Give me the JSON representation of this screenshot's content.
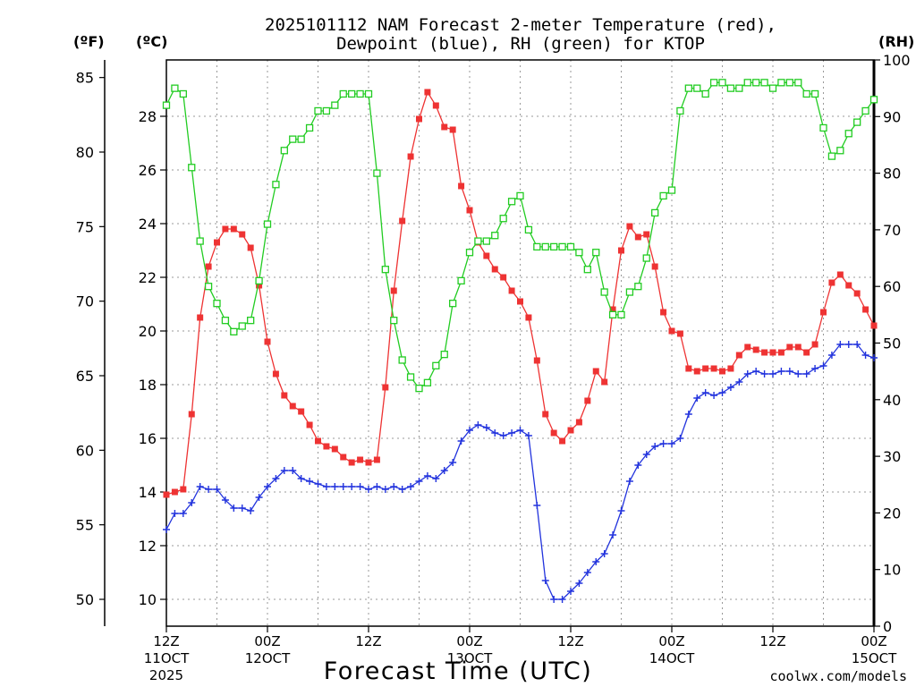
{
  "title_line1": "2025101112 NAM Forecast 2-meter Temperature (red),",
  "title_line2": "Dewpoint (blue), RH (green) for KTOP",
  "unit_f": "(ºF)",
  "unit_c": "(ºC)",
  "unit_rh": "(RH)",
  "xlabel": "Forecast Time (UTC)",
  "credit": "coolwx.com/models",
  "colors": {
    "temp": "#ee3333",
    "dewpoint": "#2233dd",
    "rh": "#22cc22",
    "grid": "#999999",
    "credit": "#ee3333"
  },
  "chart_data": {
    "type": "line",
    "x_hours": [
      0,
      1,
      2,
      3,
      4,
      5,
      6,
      7,
      8,
      9,
      10,
      11,
      12,
      13,
      14,
      15,
      16,
      17,
      18,
      19,
      20,
      21,
      22,
      23,
      24,
      25,
      26,
      27,
      28,
      29,
      30,
      31,
      32,
      33,
      34,
      35,
      36,
      37,
      38,
      39,
      40,
      41,
      42,
      43,
      44,
      45,
      46,
      47,
      48,
      49,
      50,
      51,
      52,
      53,
      54,
      55,
      56,
      57,
      58,
      59,
      60,
      61,
      62,
      63,
      64,
      65,
      66,
      67,
      68,
      69,
      70,
      71,
      72,
      73,
      74,
      75,
      76,
      77,
      78,
      79,
      80,
      81,
      82,
      83,
      84
    ],
    "x_ticks": [
      {
        "hour": 0,
        "label1": "12Z",
        "label2": "11OCT",
        "label3": "2025"
      },
      {
        "hour": 12,
        "label1": "00Z",
        "label2": "12OCT",
        "label3": ""
      },
      {
        "hour": 24,
        "label1": "12Z",
        "label2": "",
        "label3": ""
      },
      {
        "hour": 36,
        "label1": "00Z",
        "label2": "13OCT",
        "label3": ""
      },
      {
        "hour": 48,
        "label1": "12Z",
        "label2": "",
        "label3": ""
      },
      {
        "hour": 60,
        "label1": "00Z",
        "label2": "14OCT",
        "label3": ""
      },
      {
        "hour": 72,
        "label1": "12Z",
        "label2": "",
        "label3": ""
      },
      {
        "hour": 84,
        "label1": "00Z",
        "label2": "15OCT",
        "label3": ""
      }
    ],
    "xlim": [
      0,
      84
    ],
    "ylim_c": [
      9,
      30.1
    ],
    "yticks_c": [
      "10",
      "12",
      "14",
      "16",
      "18",
      "20",
      "22",
      "24",
      "26",
      "28"
    ],
    "yticks_f": [
      "50",
      "55",
      "60",
      "65",
      "70",
      "75",
      "80",
      "85"
    ],
    "ylim_rh": [
      0,
      100
    ],
    "yticks_rh": [
      "0",
      "10",
      "20",
      "30",
      "40",
      "50",
      "60",
      "70",
      "80",
      "90",
      "100"
    ],
    "grid": true,
    "series": [
      {
        "name": "Temperature",
        "unit": "C",
        "marker": "filled-square",
        "values": [
          13.9,
          14.0,
          14.1,
          16.9,
          20.5,
          22.4,
          23.3,
          23.8,
          23.8,
          23.6,
          23.1,
          21.7,
          19.6,
          18.4,
          17.6,
          17.2,
          17.0,
          16.5,
          15.9,
          15.7,
          15.6,
          15.3,
          15.1,
          15.2,
          15.1,
          15.2,
          17.9,
          21.5,
          24.1,
          26.5,
          27.9,
          28.9,
          28.4,
          27.6,
          27.5,
          25.4,
          24.5,
          23.3,
          22.8,
          22.3,
          22.0,
          21.5,
          21.1,
          20.5,
          18.9,
          16.9,
          16.2,
          15.9,
          16.3,
          16.6,
          17.4,
          18.5,
          18.1,
          20.8,
          23.0,
          23.9,
          23.5,
          23.6,
          22.4,
          20.7,
          20.0,
          19.9,
          18.6,
          18.5,
          18.6,
          18.6,
          18.5,
          18.6,
          19.1,
          19.4,
          19.3,
          19.2,
          19.2,
          19.2,
          19.4,
          19.4,
          19.2,
          19.5,
          20.7,
          21.8,
          22.1,
          21.7,
          21.4,
          20.8,
          20.2
        ]
      },
      {
        "name": "Dewpoint",
        "unit": "C",
        "marker": "plus",
        "values": [
          12.6,
          13.2,
          13.2,
          13.6,
          14.2,
          14.1,
          14.1,
          13.7,
          13.4,
          13.4,
          13.3,
          13.8,
          14.2,
          14.5,
          14.8,
          14.8,
          14.5,
          14.4,
          14.3,
          14.2,
          14.2,
          14.2,
          14.2,
          14.2,
          14.1,
          14.2,
          14.1,
          14.2,
          14.1,
          14.2,
          14.4,
          14.6,
          14.5,
          14.8,
          15.1,
          15.9,
          16.3,
          16.5,
          16.4,
          16.2,
          16.1,
          16.2,
          16.3,
          16.1,
          13.5,
          10.7,
          10.0,
          10.0,
          10.3,
          10.6,
          11.0,
          11.4,
          11.7,
          12.4,
          13.3,
          14.4,
          15.0,
          15.4,
          15.7,
          15.8,
          15.8,
          16.0,
          16.9,
          17.5,
          17.7,
          17.6,
          17.7,
          17.9,
          18.1,
          18.4,
          18.5,
          18.4,
          18.4,
          18.5,
          18.5,
          18.4,
          18.4,
          18.6,
          18.7,
          19.1,
          19.5,
          19.5,
          19.5,
          19.1,
          19.0
        ]
      },
      {
        "name": "RH",
        "unit": "%",
        "marker": "open-square",
        "values": [
          92,
          95,
          94,
          81,
          68,
          60,
          57,
          54,
          52,
          53,
          54,
          61,
          71,
          78,
          84,
          86,
          86,
          88,
          91,
          91,
          92,
          94,
          94,
          94,
          94,
          80,
          63,
          54,
          47,
          44,
          42,
          43,
          46,
          48,
          57,
          61,
          66,
          68,
          68,
          69,
          72,
          75,
          76,
          70,
          67,
          67,
          67,
          67,
          67,
          66,
          63,
          66,
          59,
          55,
          55,
          59,
          60,
          65,
          73,
          76,
          77,
          91,
          95,
          95,
          94,
          96,
          96,
          95,
          95,
          96,
          96,
          96,
          95,
          96,
          96,
          96,
          94,
          94,
          88,
          83,
          84,
          87,
          89,
          91,
          93
        ]
      }
    ]
  }
}
